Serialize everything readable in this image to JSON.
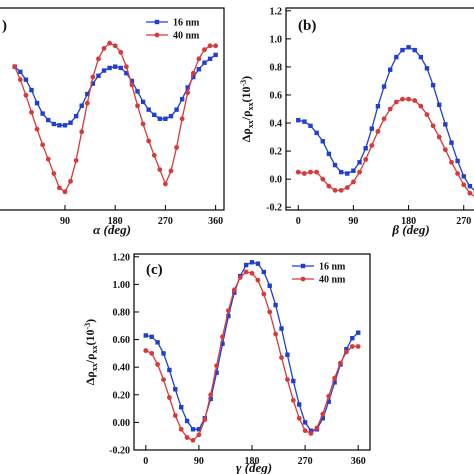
{
  "chart_data": [
    {
      "id": "a",
      "type": "line",
      "panel_label": ")",
      "xlabel": "α (deg)",
      "ylabel": "",
      "xlim": [
        -30,
        375
      ],
      "ylim": [
        -0.3,
        1.25
      ],
      "xticks": [
        90,
        180,
        270,
        360
      ],
      "yticks": [],
      "legend": "top-right",
      "series": [
        {
          "name": "16 nm",
          "color": "#1f3fd1",
          "marker": "square",
          "x": [
            0,
            10,
            20,
            30,
            40,
            50,
            60,
            70,
            80,
            90,
            100,
            110,
            120,
            130,
            140,
            150,
            160,
            170,
            180,
            190,
            200,
            210,
            220,
            230,
            240,
            250,
            260,
            270,
            280,
            290,
            300,
            310,
            320,
            330,
            340,
            350,
            360
          ],
          "y": [
            0.8,
            0.76,
            0.7,
            0.62,
            0.52,
            0.44,
            0.39,
            0.36,
            0.35,
            0.35,
            0.37,
            0.42,
            0.5,
            0.59,
            0.67,
            0.73,
            0.77,
            0.79,
            0.8,
            0.79,
            0.75,
            0.69,
            0.61,
            0.53,
            0.47,
            0.43,
            0.4,
            0.4,
            0.42,
            0.47,
            0.55,
            0.64,
            0.72,
            0.78,
            0.83,
            0.86,
            0.89
          ]
        },
        {
          "name": "40 nm",
          "color": "#d63a3a",
          "marker": "circle",
          "x": [
            0,
            10,
            20,
            30,
            40,
            50,
            60,
            70,
            80,
            90,
            100,
            110,
            120,
            130,
            140,
            150,
            160,
            170,
            180,
            190,
            200,
            210,
            220,
            230,
            240,
            250,
            260,
            270,
            280,
            290,
            300,
            310,
            320,
            330,
            340,
            350,
            360
          ],
          "y": [
            0.8,
            0.7,
            0.58,
            0.45,
            0.32,
            0.2,
            0.09,
            -0.02,
            -0.13,
            -0.16,
            -0.08,
            0.08,
            0.3,
            0.52,
            0.72,
            0.86,
            0.94,
            0.98,
            0.96,
            0.91,
            0.8,
            0.66,
            0.5,
            0.36,
            0.23,
            0.12,
            0.01,
            -0.1,
            0.0,
            0.18,
            0.4,
            0.6,
            0.75,
            0.86,
            0.93,
            0.96,
            0.96
          ]
        }
      ]
    },
    {
      "id": "b",
      "type": "line",
      "panel_label": "(b)",
      "xlabel": "β (deg)",
      "ylabel_main": "Δρ",
      "ylabel_sub": "xx",
      "ylabel_slash": "/ρ",
      "ylabel_unit": "(10",
      "ylabel_exp": "-3",
      "ylabel_close": ")",
      "xlim": [
        -20,
        290
      ],
      "ylim": [
        -0.22,
        1.22
      ],
      "xticks": [
        0,
        90,
        180,
        270
      ],
      "xtick_labels": [
        "0",
        "90",
        "180",
        "270"
      ],
      "yticks": [
        -0.2,
        0.0,
        0.2,
        0.4,
        0.6,
        0.8,
        1.0,
        1.2
      ],
      "ytick_labels": [
        "-0.2",
        "0.0",
        "0.2",
        "0.4",
        "0.6",
        "0.8",
        "1.0",
        "1.2"
      ],
      "legend": "none",
      "series": [
        {
          "name": "16 nm",
          "color": "#1f3fd1",
          "marker": "square",
          "x": [
            0,
            10,
            20,
            30,
            40,
            50,
            60,
            70,
            80,
            90,
            100,
            110,
            120,
            130,
            140,
            150,
            160,
            170,
            180,
            190,
            200,
            210,
            220,
            230,
            240,
            250,
            260,
            270,
            280,
            290
          ],
          "y": [
            0.42,
            0.41,
            0.38,
            0.33,
            0.27,
            0.18,
            0.1,
            0.05,
            0.04,
            0.06,
            0.12,
            0.22,
            0.36,
            0.52,
            0.66,
            0.78,
            0.87,
            0.92,
            0.94,
            0.92,
            0.87,
            0.79,
            0.67,
            0.53,
            0.39,
            0.26,
            0.13,
            0.02,
            -0.05,
            -0.09
          ]
        },
        {
          "name": "40 nm",
          "color": "#d63a3a",
          "marker": "circle",
          "x": [
            0,
            10,
            20,
            30,
            40,
            50,
            60,
            70,
            80,
            90,
            100,
            110,
            120,
            130,
            140,
            150,
            160,
            170,
            180,
            190,
            200,
            210,
            220,
            230,
            240,
            250,
            260,
            270,
            280,
            290
          ],
          "y": [
            0.05,
            0.04,
            0.05,
            0.05,
            0.0,
            -0.05,
            -0.08,
            -0.08,
            -0.06,
            -0.02,
            0.05,
            0.14,
            0.24,
            0.34,
            0.43,
            0.5,
            0.55,
            0.57,
            0.57,
            0.56,
            0.52,
            0.46,
            0.38,
            0.3,
            0.21,
            0.12,
            0.04,
            -0.04,
            -0.1,
            -0.13
          ]
        }
      ]
    },
    {
      "id": "c",
      "type": "line",
      "panel_label": "(c)",
      "xlabel": "γ (deg)",
      "ylabel_main": "Δρ",
      "ylabel_sub": "xx",
      "ylabel_slash": "/ρ",
      "ylabel_unit": "(10",
      "ylabel_exp": "-3",
      "ylabel_close": ")",
      "xlim": [
        -20,
        380
      ],
      "ylim": [
        -0.2,
        1.22
      ],
      "xticks": [
        0,
        90,
        180,
        270,
        360
      ],
      "xtick_labels": [
        "0",
        "90",
        "180",
        "270",
        "360"
      ],
      "yticks": [
        -0.2,
        0.0,
        0.2,
        0.4,
        0.6,
        0.8,
        1.0,
        1.2
      ],
      "ytick_labels": [
        "-0.20",
        "0.00",
        "0.20",
        "0.40",
        "0.60",
        "0.80",
        "1.00",
        "1.20"
      ],
      "legend": "top-right",
      "series": [
        {
          "name": "16 nm",
          "color": "#1f3fd1",
          "marker": "square",
          "x": [
            0,
            10,
            20,
            30,
            40,
            50,
            60,
            70,
            80,
            90,
            100,
            110,
            120,
            130,
            140,
            150,
            160,
            170,
            180,
            190,
            200,
            210,
            220,
            230,
            240,
            250,
            260,
            270,
            280,
            290,
            300,
            310,
            320,
            330,
            340,
            350,
            360
          ],
          "y": [
            0.63,
            0.62,
            0.58,
            0.5,
            0.38,
            0.24,
            0.11,
            0.01,
            -0.05,
            -0.05,
            0.03,
            0.17,
            0.36,
            0.57,
            0.77,
            0.94,
            1.06,
            1.14,
            1.16,
            1.15,
            1.09,
            0.99,
            0.85,
            0.68,
            0.49,
            0.3,
            0.13,
            0.0,
            -0.06,
            -0.05,
            0.03,
            0.15,
            0.29,
            0.42,
            0.53,
            0.61,
            0.65
          ]
        },
        {
          "name": "40 nm",
          "color": "#d63a3a",
          "marker": "circle",
          "x": [
            0,
            10,
            20,
            30,
            40,
            50,
            60,
            70,
            80,
            90,
            100,
            110,
            120,
            130,
            140,
            150,
            160,
            170,
            180,
            190,
            200,
            210,
            220,
            230,
            240,
            250,
            260,
            270,
            280,
            290,
            300,
            310,
            320,
            330,
            340,
            350,
            360
          ],
          "y": [
            0.52,
            0.5,
            0.42,
            0.31,
            0.18,
            0.05,
            -0.05,
            -0.11,
            -0.13,
            -0.09,
            0.02,
            0.2,
            0.41,
            0.62,
            0.81,
            0.96,
            1.05,
            1.09,
            1.08,
            1.03,
            0.93,
            0.8,
            0.64,
            0.47,
            0.31,
            0.16,
            0.03,
            -0.06,
            -0.08,
            -0.04,
            0.06,
            0.19,
            0.32,
            0.43,
            0.51,
            0.55,
            0.55
          ]
        }
      ]
    }
  ]
}
